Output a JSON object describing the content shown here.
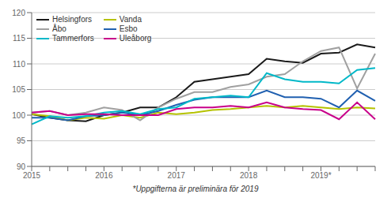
{
  "chart_data": {
    "type": "line",
    "categories": [
      "2015",
      null,
      null,
      null,
      "2016",
      null,
      null,
      null,
      "2017",
      null,
      null,
      null,
      "2018",
      null,
      null,
      null,
      "2019*",
      null,
      null,
      null
    ],
    "series": [
      {
        "name": "Helsingfors",
        "color": "#1a1a1a",
        "values": [
          100.2,
          99.5,
          99.0,
          98.8,
          100.0,
          100.5,
          101.5,
          101.5,
          103.5,
          106.5,
          107.0,
          107.5,
          108.0,
          111.0,
          110.5,
          110.2,
          112.0,
          112.2,
          113.8,
          113.2
        ]
      },
      {
        "name": "Vanda",
        "color": "#b5c200",
        "values": [
          100.2,
          99.8,
          99.0,
          99.5,
          99.3,
          100.0,
          99.5,
          100.5,
          100.2,
          100.5,
          101.0,
          101.2,
          101.5,
          101.8,
          101.5,
          101.8,
          101.5,
          101.2,
          101.5,
          101.3
        ]
      },
      {
        "name": "Åbo",
        "color": "#a0a0a0",
        "values": [
          100.5,
          100.8,
          100.0,
          100.5,
          101.5,
          101.0,
          99.0,
          101.5,
          103.2,
          104.5,
          104.5,
          105.5,
          106.0,
          107.5,
          108.0,
          110.5,
          112.5,
          113.2,
          105.2,
          112.0
        ]
      },
      {
        "name": "Esbo",
        "color": "#2060b0",
        "values": [
          99.5,
          99.5,
          99.0,
          99.8,
          100.0,
          100.5,
          100.0,
          100.8,
          102.0,
          103.0,
          103.5,
          103.5,
          103.5,
          104.8,
          103.5,
          103.5,
          103.2,
          101.5,
          104.8,
          102.8
        ]
      },
      {
        "name": "Tammerfors",
        "color": "#00b8c8",
        "values": [
          98.2,
          99.8,
          99.5,
          99.8,
          100.5,
          100.8,
          100.2,
          101.2,
          101.5,
          103.2,
          103.5,
          103.8,
          103.5,
          108.2,
          107.0,
          106.5,
          106.5,
          106.2,
          108.8,
          109.2
        ]
      },
      {
        "name": "Uleåborg",
        "color": "#c8008a",
        "values": [
          100.5,
          100.8,
          100.0,
          100.2,
          100.2,
          100.0,
          100.0,
          100.0,
          101.2,
          101.5,
          101.5,
          101.8,
          101.5,
          102.5,
          101.5,
          101.2,
          101.0,
          99.2,
          102.5,
          99.2
        ]
      }
    ],
    "ylim": [
      90,
      120
    ],
    "yticks": [
      90,
      95,
      100,
      105,
      110,
      115,
      120
    ],
    "grid": true,
    "legend": "upper left",
    "annotations": [
      "*Uppgifterna är preliminära för 2019"
    ]
  }
}
